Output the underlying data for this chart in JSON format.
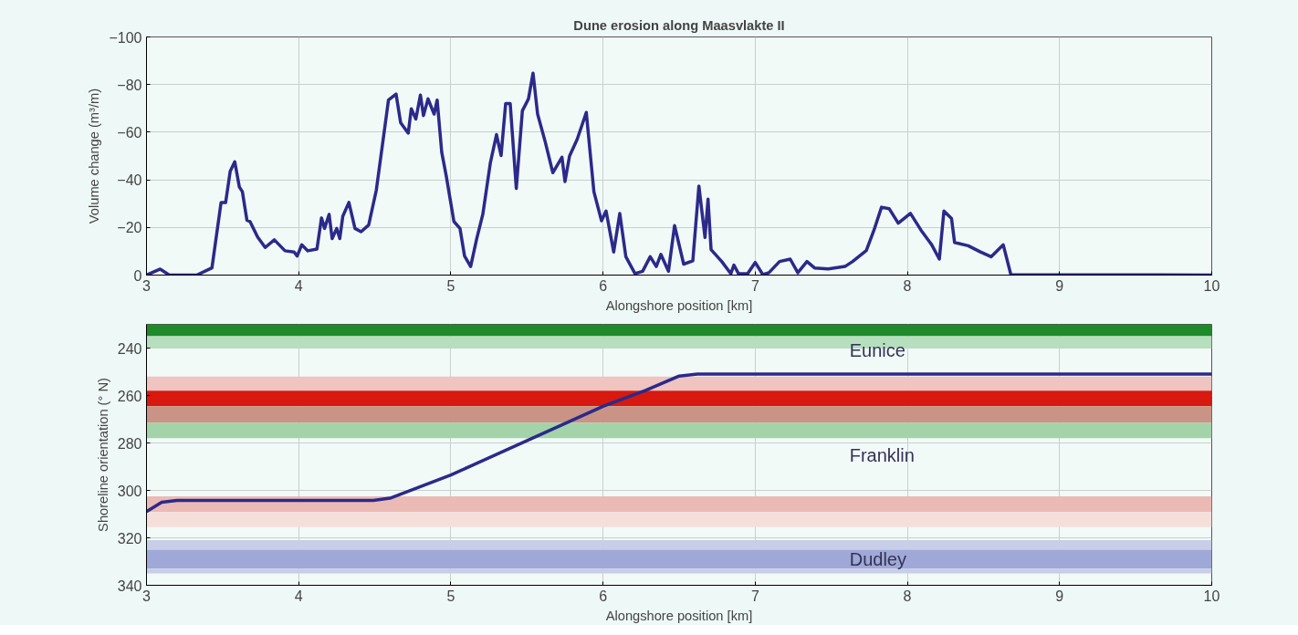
{
  "chart_data": [
    {
      "type": "line",
      "title": "Dune erosion along Maasvlakte II",
      "xlabel": "Alongshore position [km]",
      "ylabel": "Volume change (m³/m)",
      "xlim": [
        3,
        10
      ],
      "xticks": [
        3,
        4,
        5,
        6,
        7,
        8,
        9,
        10
      ],
      "ylim": [
        0,
        -100
      ],
      "yticks": [
        0,
        -20,
        -40,
        -60,
        -80,
        -100
      ],
      "grid": true,
      "series": [
        {
          "color": "#2b2a8a",
          "x": [
            3.0,
            3.09,
            3.15,
            3.33,
            3.43,
            3.49,
            3.52,
            3.55,
            3.58,
            3.61,
            3.63,
            3.66,
            3.68,
            3.73,
            3.78,
            3.84,
            3.91,
            3.97,
            3.99,
            4.02,
            4.06,
            4.12,
            4.15,
            4.17,
            4.2,
            4.22,
            4.25,
            4.27,
            4.29,
            4.33,
            4.37,
            4.41,
            4.46,
            4.51,
            4.55,
            4.59,
            4.64,
            4.67,
            4.72,
            4.74,
            4.77,
            4.8,
            4.82,
            4.85,
            4.89,
            4.91,
            4.94,
            4.97,
            5.02,
            5.06,
            5.09,
            5.13,
            5.17,
            5.21,
            5.26,
            5.3,
            5.33,
            5.36,
            5.39,
            5.43,
            5.47,
            5.51,
            5.54,
            5.57,
            5.62,
            5.67,
            5.73,
            5.75,
            5.78,
            5.83,
            5.89,
            5.94,
            5.99,
            6.02,
            6.07,
            6.11,
            6.15,
            6.21,
            6.26,
            6.31,
            6.35,
            6.38,
            6.43,
            6.47,
            6.53,
            6.59,
            6.63,
            6.67,
            6.69,
            6.71,
            6.78,
            6.84,
            6.86,
            6.89,
            6.95,
            7.0,
            7.05,
            7.09,
            7.16,
            7.23,
            7.28,
            7.34,
            7.39,
            7.48,
            7.59,
            7.64,
            7.73,
            7.78,
            7.83,
            7.88,
            7.94,
            8.02,
            8.09,
            8.16,
            8.21,
            8.24,
            8.29,
            8.31,
            8.4,
            8.48,
            8.55,
            8.63,
            8.68,
            10.0
          ],
          "values": [
            0,
            -2.5,
            0,
            0,
            -3,
            -30.5,
            -30.5,
            -43.6,
            -47.6,
            -37,
            -35,
            -23,
            -22.5,
            -16,
            -11.6,
            -14.8,
            -10.2,
            -9.7,
            -8,
            -12.7,
            -10.2,
            -10.9,
            -24,
            -19.6,
            -25.5,
            -15.3,
            -19.6,
            -15.3,
            -24.7,
            -30.5,
            -19.6,
            -18.2,
            -21,
            -35.6,
            -54.5,
            -73.5,
            -76,
            -64,
            -59.6,
            -69.8,
            -65.5,
            -75.6,
            -67,
            -74,
            -67.6,
            -73.5,
            -51.6,
            -41.5,
            -22.5,
            -19.6,
            -8,
            -3.6,
            -15.3,
            -25.5,
            -47.3,
            -59,
            -50.2,
            -72,
            -72,
            -36.4,
            -69,
            -74,
            -84.8,
            -67.6,
            -56,
            -43,
            -49.5,
            -39.3,
            -50,
            -57,
            -68.3,
            -35,
            -22.8,
            -26.9,
            -9.7,
            -25.9,
            -7.7,
            -0.6,
            -1.6,
            -7.7,
            -3.6,
            -8.7,
            -1.6,
            -20.8,
            -4.6,
            -6,
            -37.4,
            -15.8,
            -31.9,
            -10.7,
            -5.7,
            -0.6,
            -4.2,
            -0.6,
            -0.6,
            -5.3,
            -0.2,
            -1,
            -5.7,
            -6.7,
            -1,
            -5.7,
            -3,
            -2.6,
            -3.6,
            -5.7,
            -10.3,
            -18.8,
            -28.5,
            -27.9,
            -21.8,
            -25.9,
            -18.8,
            -12.7,
            -6.7,
            -26.9,
            -23.8,
            -13.7,
            -12.3,
            -9.7,
            -7.7,
            -12.7,
            -0.2,
            0
          ]
        }
      ]
    },
    {
      "type": "line",
      "xlabel": "Alongshore position [km]",
      "ylabel": "Shoreline orientation (° N)",
      "xlim": [
        3,
        10
      ],
      "xticks": [
        3,
        4,
        5,
        6,
        7,
        8,
        9,
        10
      ],
      "ylim": [
        340,
        230
      ],
      "yticks": [
        240,
        260,
        280,
        300,
        320,
        340
      ],
      "grid": true,
      "bands": [
        {
          "axis": "y",
          "from": 230,
          "to": 235,
          "color": "#1e8a2a"
        },
        {
          "axis": "y",
          "from": 235,
          "to": 240,
          "color": "#b6dfbd"
        },
        {
          "axis": "y",
          "from": 252,
          "to": 258,
          "color": "#efc4c1"
        },
        {
          "axis": "y",
          "from": 258,
          "to": 264.5,
          "color": "#d7190f"
        },
        {
          "axis": "y",
          "from": 264.5,
          "to": 271.5,
          "color": "#c99485"
        },
        {
          "axis": "y",
          "from": 271.5,
          "to": 278,
          "color": "#a3d3a9"
        },
        {
          "axis": "y",
          "from": 302.5,
          "to": 309,
          "color": "#ecbab5"
        },
        {
          "axis": "y",
          "from": 309,
          "to": 315.5,
          "color": "#f5dfdb"
        },
        {
          "axis": "y",
          "from": 321,
          "to": 325,
          "color": "#c8cee8"
        },
        {
          "axis": "y",
          "from": 325,
          "to": 333,
          "color": "#9fa8d6"
        },
        {
          "axis": "y",
          "from": 333,
          "to": 335,
          "color": "#c8cee8"
        }
      ],
      "annotations": [
        "Eunice",
        "Franklin",
        "Dudley"
      ],
      "series": [
        {
          "color": "#2b2a8a",
          "x": [
            3.0,
            3.1,
            3.2,
            4.49,
            4.6,
            5.0,
            6.0,
            6.28,
            6.5,
            6.62,
            10.0
          ],
          "values": [
            308.9,
            305,
            304.2,
            304.2,
            303.3,
            293.5,
            264.6,
            257.8,
            251.8,
            251,
            251
          ]
        }
      ]
    }
  ]
}
